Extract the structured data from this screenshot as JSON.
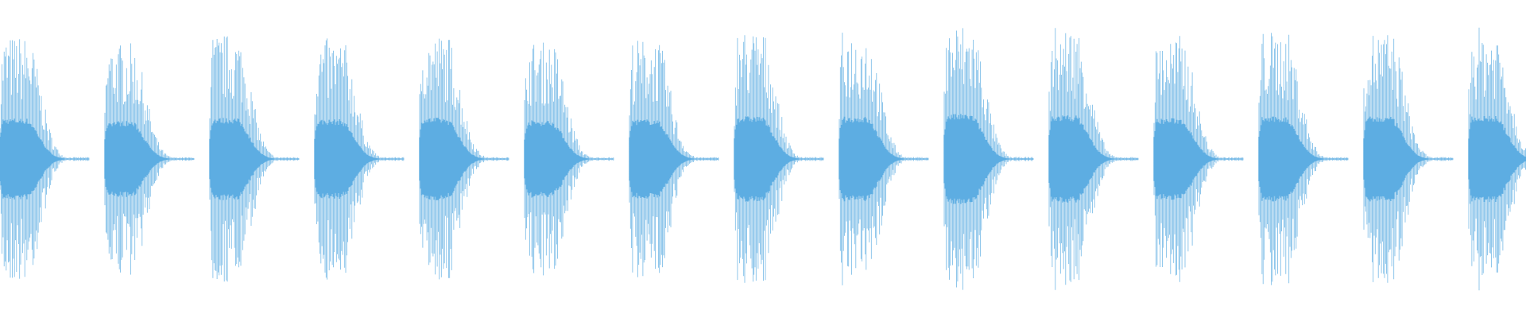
{
  "waveform": {
    "color": "#5dade2",
    "bursts": [
      0.78,
      0.73,
      0.79,
      0.76,
      0.79,
      0.74,
      0.76,
      0.82,
      0.81,
      0.86,
      0.84,
      0.78,
      0.81,
      0.81,
      0.83
    ]
  }
}
